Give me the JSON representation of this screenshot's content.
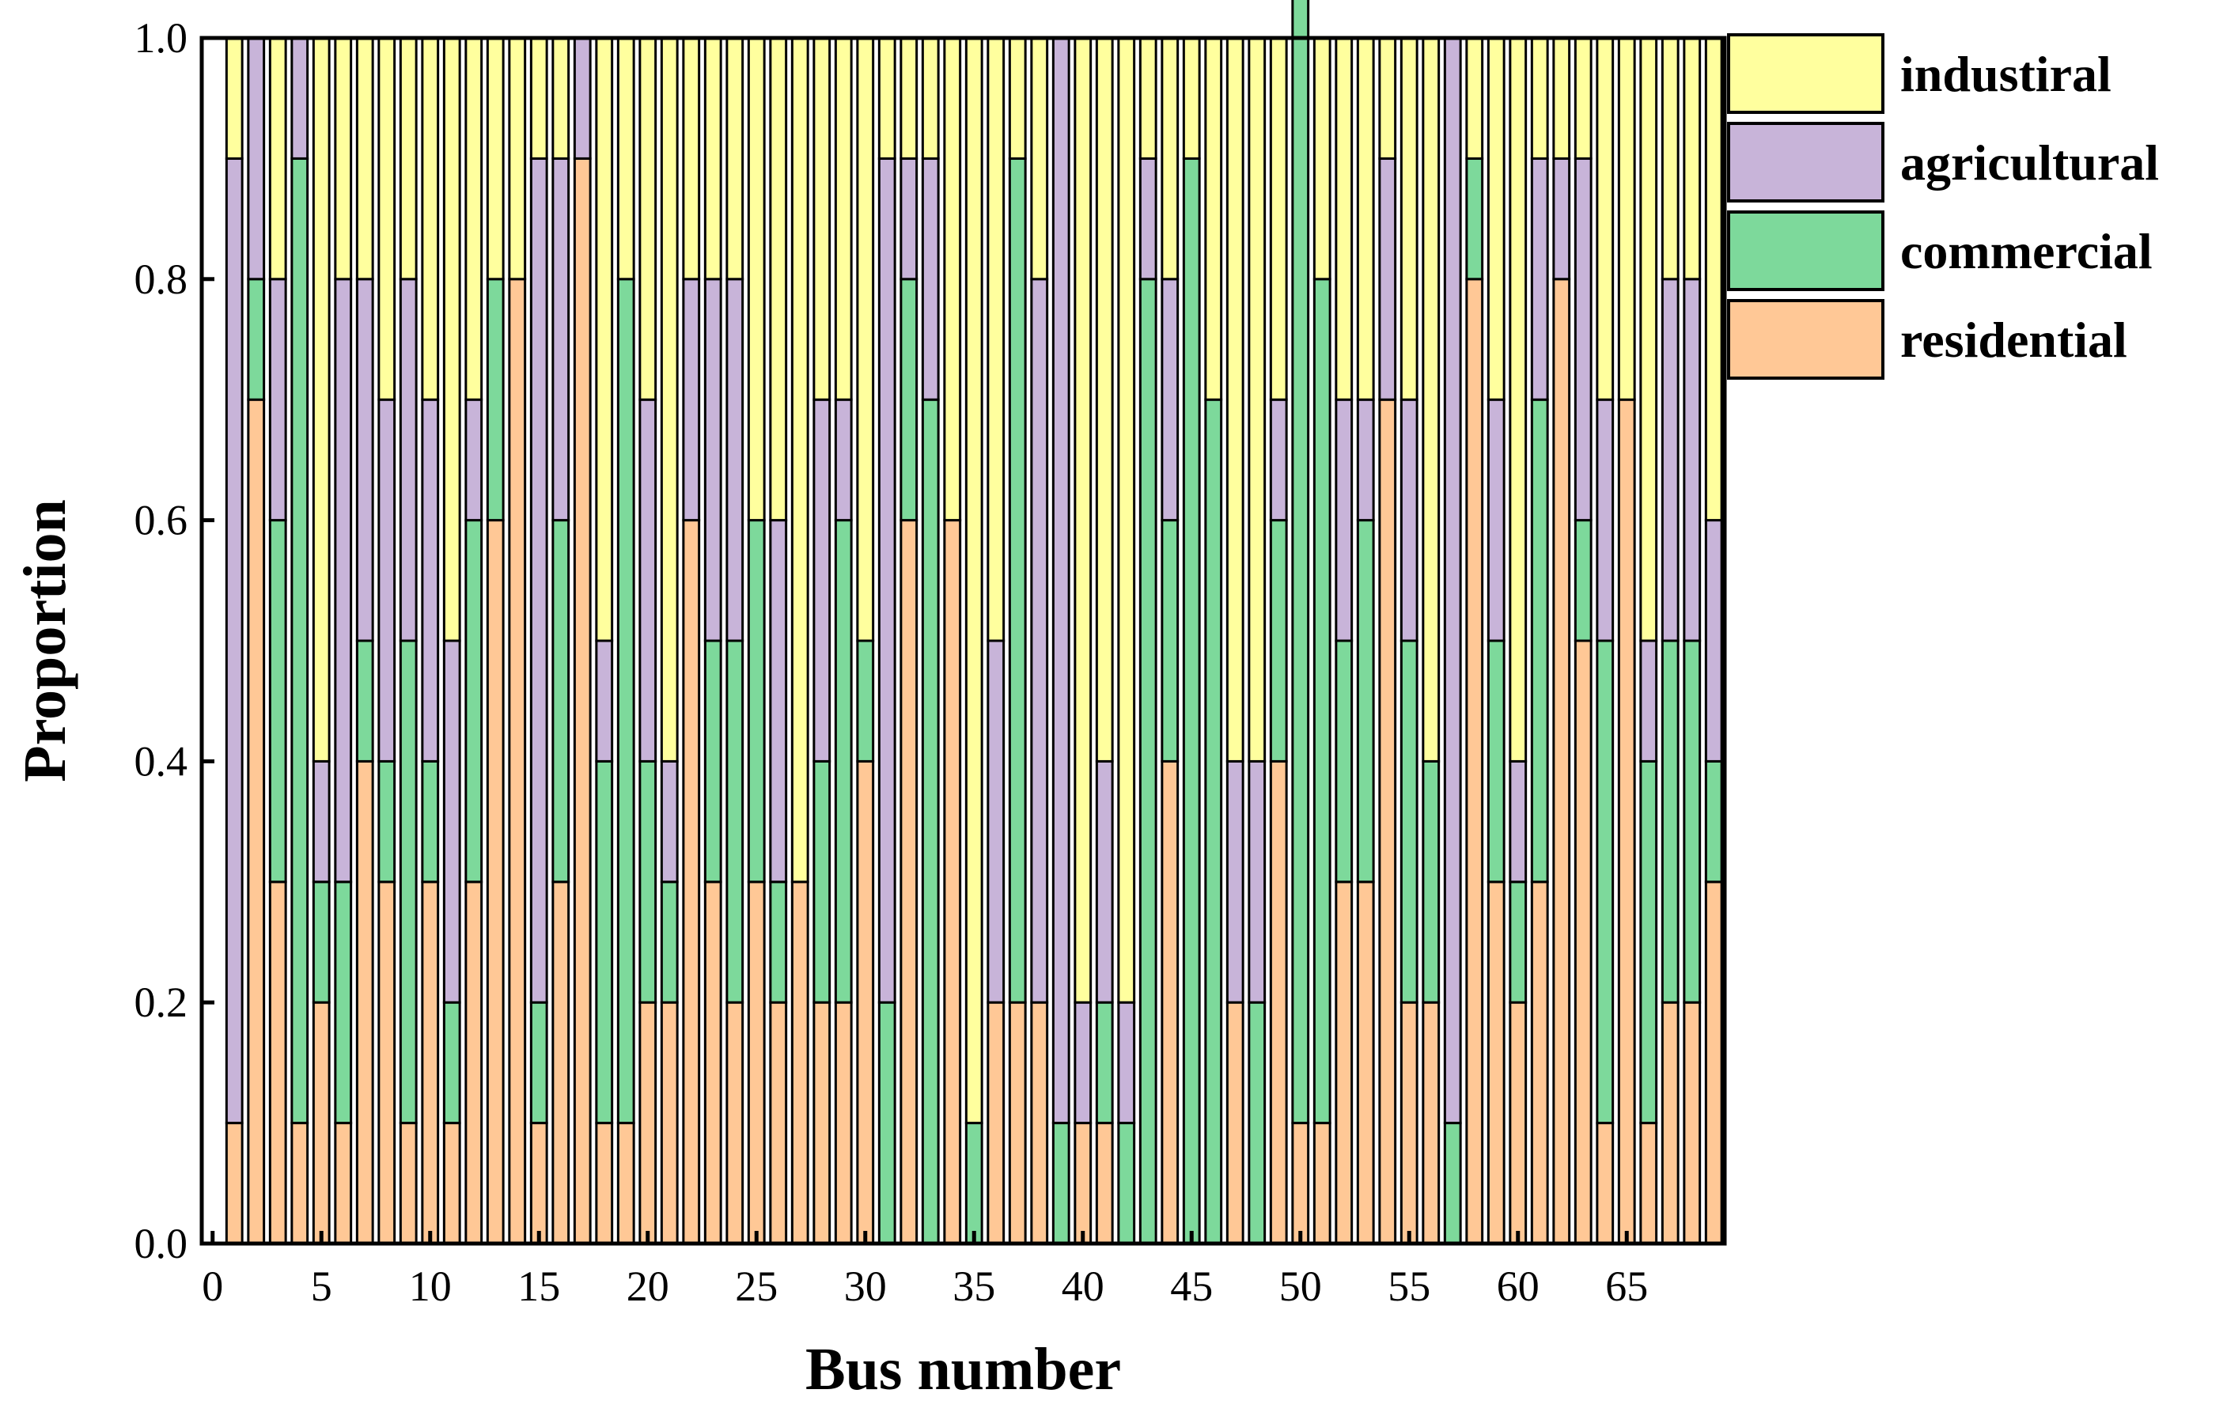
{
  "colors": {
    "residential": "#FFC896",
    "commercial": "#7DD99B",
    "agricultural": "#C8B4D9",
    "industrial": "#FFFF9E",
    "frame": "#000000"
  },
  "chart_data": {
    "type": "bar",
    "stacked": true,
    "title": "",
    "xlabel": "Bus number",
    "ylabel": "Proportion",
    "xlim": [
      -0.5,
      69.5
    ],
    "ylim": [
      0,
      1
    ],
    "xticks": [
      0,
      5,
      10,
      15,
      20,
      25,
      30,
      35,
      40,
      45,
      50,
      55,
      60,
      65
    ],
    "xtick_labels": [
      "0",
      "5",
      "10",
      "15",
      "20",
      "25",
      "30",
      "35",
      "40",
      "45",
      "50",
      "55",
      "60",
      "65"
    ],
    "yticks": [
      0,
      0.2,
      0.4,
      0.6,
      0.8,
      1.0
    ],
    "ytick_labels": [
      "0.0",
      "0.2",
      "0.4",
      "0.6",
      "0.8",
      "1.0"
    ],
    "legend_position": "outside-top-right",
    "grid": false,
    "categories": [
      1,
      2,
      3,
      4,
      5,
      6,
      7,
      8,
      9,
      10,
      11,
      12,
      13,
      14,
      15,
      16,
      17,
      18,
      19,
      20,
      21,
      22,
      23,
      24,
      25,
      26,
      27,
      28,
      29,
      30,
      31,
      32,
      33,
      34,
      35,
      36,
      37,
      38,
      39,
      40,
      41,
      42,
      43,
      44,
      45,
      46,
      47,
      48,
      49,
      50,
      51,
      52,
      53,
      54,
      55,
      56,
      57,
      58,
      59,
      60,
      61,
      62,
      63,
      64,
      65,
      66,
      67,
      68,
      69
    ],
    "series": [
      {
        "name": "residential",
        "key": "residential",
        "values": [
          0.1,
          0.7,
          0.3,
          0.1,
          0.2,
          0.1,
          0.4,
          0.3,
          0.1,
          0.3,
          0.1,
          0.3,
          0.6,
          0.8,
          0.1,
          0.3,
          0.9,
          0.1,
          0.1,
          0.2,
          0.2,
          0.6,
          0.3,
          0.2,
          0.3,
          0.2,
          0.3,
          0.2,
          0.2,
          0.4,
          0.0,
          0.6,
          0.0,
          0.6,
          0.0,
          0.2,
          0.2,
          0.2,
          0.0,
          0.1,
          0.1,
          0.0,
          0.0,
          0.4,
          0.0,
          0.0,
          0.2,
          0.0,
          0.4,
          0.1,
          0.1,
          0.3,
          0.3,
          0.7,
          0.2,
          0.2,
          0.0,
          0.8,
          0.3,
          0.2,
          0.3,
          0.8,
          0.5,
          0.1,
          0.7,
          0.1,
          0.2,
          0.2,
          0.3
        ]
      },
      {
        "name": "commercial",
        "key": "commercial",
        "values": [
          0.0,
          0.1,
          0.3,
          0.8,
          0.1,
          0.2,
          0.1,
          0.1,
          0.4,
          0.1,
          0.1,
          0.3,
          0.2,
          0.0,
          0.1,
          0.3,
          0.0,
          0.3,
          0.7,
          0.2,
          0.1,
          0.0,
          0.2,
          0.3,
          0.3,
          0.1,
          0.0,
          0.2,
          0.4,
          0.1,
          0.2,
          0.2,
          0.7,
          0.0,
          0.1,
          0.0,
          0.7,
          0.0,
          0.1,
          0.0,
          0.1,
          0.1,
          0.8,
          0.2,
          0.9,
          0.7,
          0.0,
          0.2,
          0.2,
          1.0,
          0.7,
          0.2,
          0.3,
          0.0,
          0.3,
          0.2,
          0.1,
          0.1,
          0.2,
          0.1,
          0.4,
          0.0,
          0.1,
          0.4,
          0.0,
          0.3,
          0.3,
          0.3,
          0.1
        ]
      },
      {
        "name": "agricultural",
        "key": "agricultural",
        "values": [
          0.8,
          0.2,
          0.2,
          0.1,
          0.1,
          0.5,
          0.3,
          0.3,
          0.3,
          0.3,
          0.3,
          0.1,
          0.0,
          0.0,
          0.7,
          0.3,
          0.1,
          0.1,
          0.0,
          0.3,
          0.1,
          0.2,
          0.3,
          0.3,
          0.0,
          0.3,
          0.0,
          0.3,
          0.1,
          0.0,
          0.7,
          0.1,
          0.2,
          0.0,
          0.0,
          0.3,
          0.0,
          0.6,
          0.9,
          0.1,
          0.2,
          0.1,
          0.1,
          0.2,
          0.0,
          0.0,
          0.2,
          0.2,
          0.1,
          0.0,
          0.0,
          0.2,
          0.1,
          0.2,
          0.2,
          0.0,
          0.9,
          0.0,
          0.2,
          0.1,
          0.2,
          0.1,
          0.3,
          0.2,
          0.0,
          0.1,
          0.3,
          0.3,
          0.2
        ]
      },
      {
        "name": "industiral",
        "key": "industrial",
        "values": [
          0.1,
          0.0,
          0.2,
          0.0,
          0.6,
          0.2,
          0.2,
          0.3,
          0.2,
          0.3,
          0.5,
          0.3,
          0.2,
          0.2,
          0.1,
          0.1,
          0.0,
          0.5,
          0.2,
          0.3,
          0.6,
          0.2,
          0.2,
          0.2,
          0.4,
          0.4,
          0.7,
          0.3,
          0.3,
          0.5,
          0.1,
          0.1,
          0.1,
          0.4,
          0.9,
          0.5,
          0.1,
          0.2,
          0.0,
          0.8,
          0.6,
          0.8,
          0.1,
          0.2,
          0.1,
          0.3,
          0.6,
          0.6,
          0.3,
          0.0,
          0.2,
          0.3,
          0.3,
          0.1,
          0.3,
          0.6,
          0.0,
          0.1,
          0.3,
          0.6,
          0.1,
          0.1,
          0.1,
          0.3,
          0.3,
          0.5,
          0.2,
          0.2,
          0.4
        ]
      }
    ],
    "legend_order": [
      "industrial",
      "agricultural",
      "commercial",
      "residential"
    ]
  }
}
